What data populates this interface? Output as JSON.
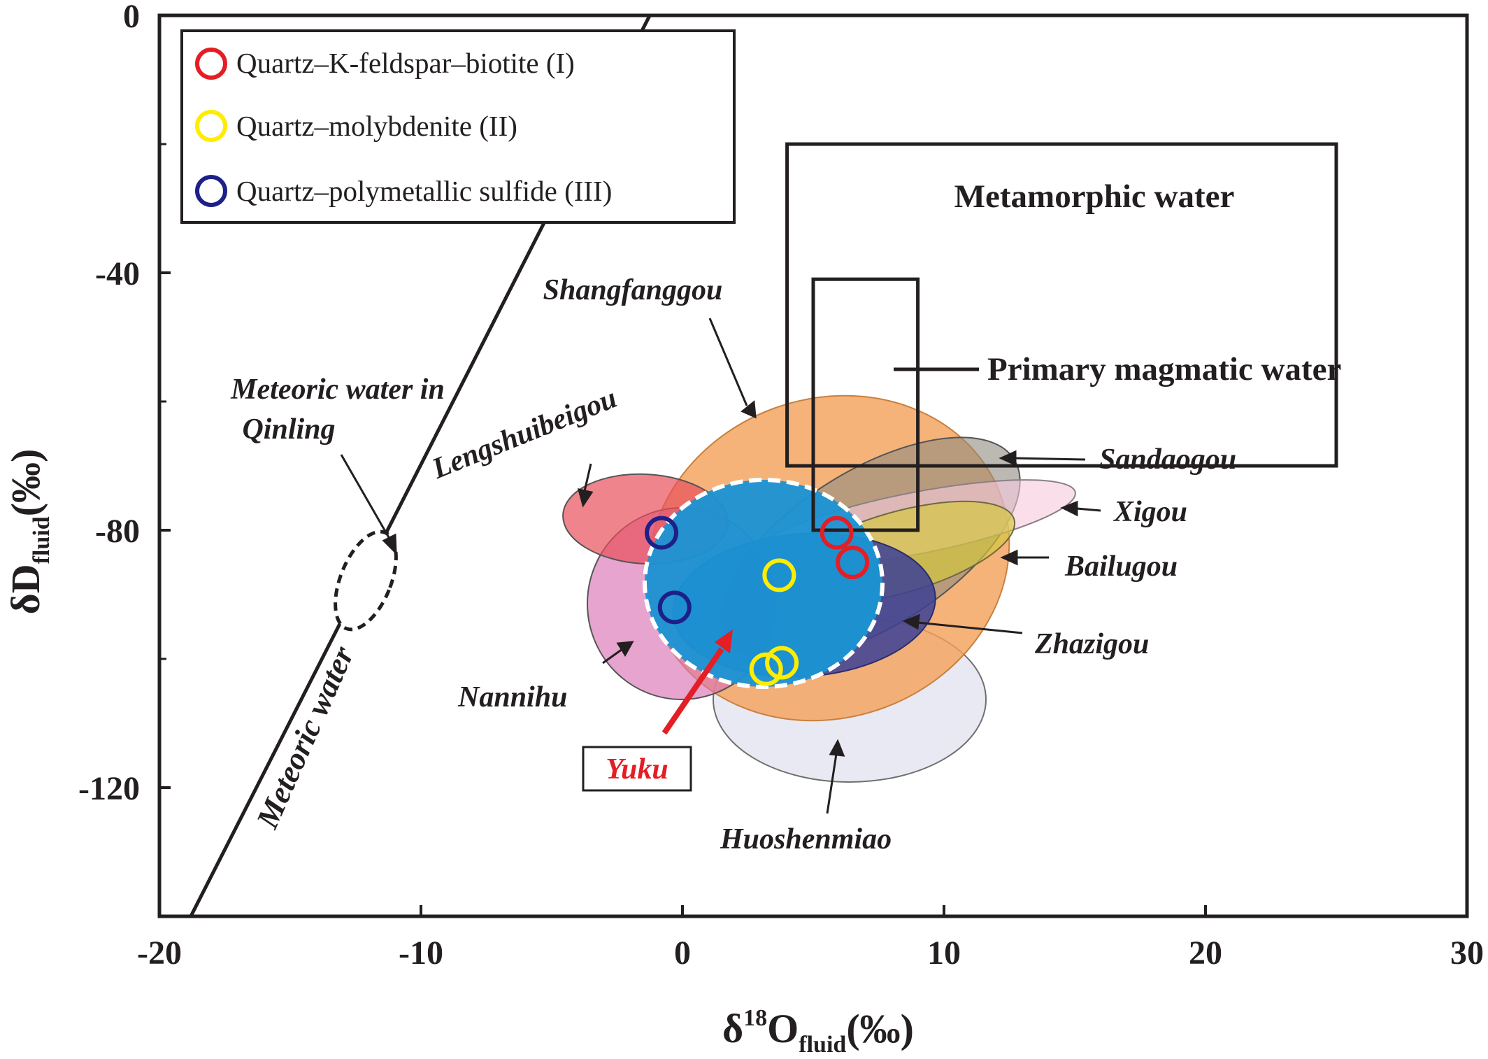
{
  "chart_data": {
    "type": "scatter",
    "xlabel": {
      "main": "δ",
      "sup": "18",
      "rest": "O",
      "sub": "fluid",
      "unit": "(‰)"
    },
    "ylabel": {
      "main": "δD",
      "sub": "fluid",
      "unit": "(‰)"
    },
    "xlim": [
      -20,
      30
    ],
    "ylim": [
      -140,
      0
    ],
    "xticks": [
      "-20",
      "-10",
      "0",
      "10",
      "20",
      "30"
    ],
    "yticks": [
      "0",
      "-40",
      "-80",
      "-120"
    ],
    "grid": false,
    "legend_position": "top-left",
    "series": [
      {
        "name": "Quartz–K-feldspar–biotite (I)",
        "color": "#e31e24",
        "marker": "open-circle",
        "points": [
          [
            5.9,
            -80.4
          ],
          [
            6.5,
            -85.0
          ]
        ]
      },
      {
        "name": "Quartz–molybdenite (II)",
        "color": "#ffed00",
        "marker": "open-circle",
        "points": [
          [
            3.7,
            -87.0
          ],
          [
            3.2,
            -101.6
          ],
          [
            3.8,
            -100.6
          ]
        ]
      },
      {
        "name": "Quartz–polymetallic sulfide (III)",
        "color": "#1d2088",
        "marker": "open-circle",
        "points": [
          [
            -0.8,
            -80.4
          ],
          [
            -0.3,
            -92.0
          ]
        ]
      }
    ],
    "meteoric_water_line": {
      "label": "Meteoric water",
      "x": [
        -18.8,
        -1.0
      ],
      "y": [
        -140.0,
        2.0
      ]
    },
    "boxes": [
      {
        "label": "Metamorphic water",
        "x": [
          4,
          25
        ],
        "y": [
          -70,
          -20
        ]
      },
      {
        "label": "Primary magmatic water",
        "x": [
          5,
          9
        ],
        "y": [
          -80,
          -41
        ]
      }
    ],
    "fields": [
      {
        "label": "Shangfanggou",
        "color": "#f4a058",
        "opacity": 0.8
      },
      {
        "label": "Lengshuibeigou",
        "color": "#e8505b",
        "opacity": 0.7
      },
      {
        "label": "Sandaogou",
        "color": "#8f8a80",
        "opacity": 0.6
      },
      {
        "label": "Xigou",
        "color": "#f6c9de",
        "opacity": 0.6
      },
      {
        "label": "Bailugou",
        "color": "#d4c83a",
        "opacity": 0.65
      },
      {
        "label": "Zhazigou",
        "color": "#3c3f95",
        "opacity": 0.85
      },
      {
        "label": "Nannihu",
        "color": "#d873b4",
        "opacity": 0.65
      },
      {
        "label": "Huoshenmiao",
        "color": "#d7d7ea",
        "opacity": 0.55
      },
      {
        "label": "Yuku",
        "color": "#1a94d4",
        "opacity": 0.95
      }
    ],
    "annotations": [
      "Meteoric water in",
      "Qinling"
    ]
  }
}
